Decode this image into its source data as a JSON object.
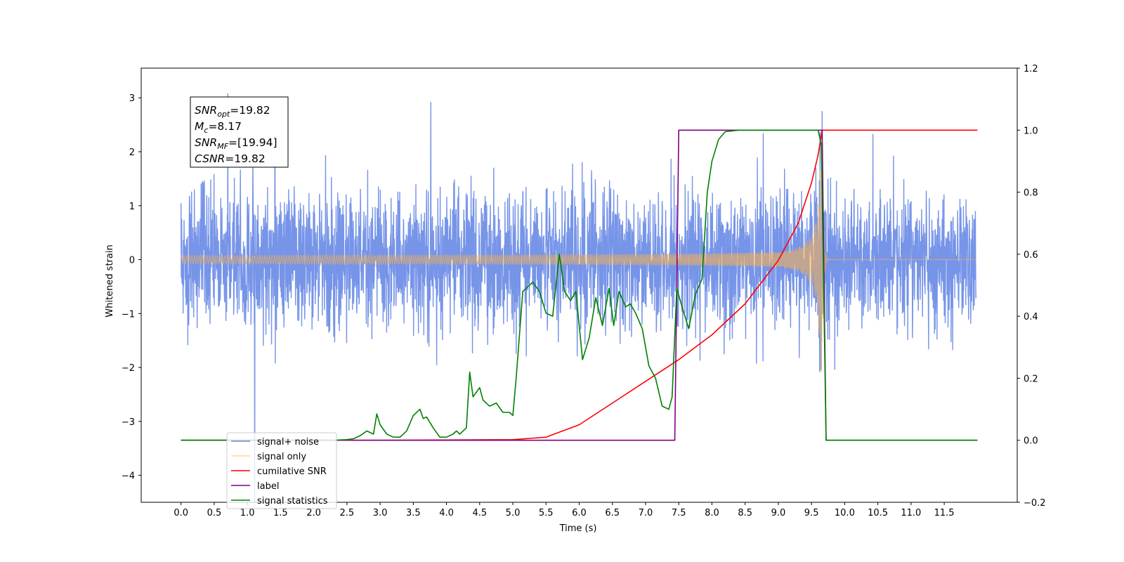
{
  "chart_data": {
    "type": "line",
    "title": "",
    "xlabel": "Time (s)",
    "ylabel": "Whitened strain",
    "xlim": [
      -0.6,
      12.6
    ],
    "ylim_left": [
      -4.5,
      3.55
    ],
    "ylim_right": [
      -0.2,
      1.2
    ],
    "x_ticks": [
      0.0,
      0.5,
      1.0,
      1.5,
      2.0,
      2.5,
      3.0,
      3.5,
      4.0,
      4.5,
      5.0,
      5.5,
      6.0,
      6.5,
      7.0,
      7.5,
      8.0,
      8.5,
      9.0,
      9.5,
      10.0,
      10.5,
      11.0,
      11.5
    ],
    "x_tick_labels": [
      "0.0",
      "0.5",
      "1.0",
      "1.5",
      "2.0",
      "2.5",
      "3.0",
      "3.5",
      "4.0",
      "4.5",
      "5.0",
      "5.5",
      "6.0",
      "6.5",
      "7.0",
      "7.5",
      "8.0",
      "8.5",
      "9.0",
      "9.5",
      "10.0",
      "10.5",
      "11.0",
      "11.5"
    ],
    "y_left_ticks": [
      3,
      2,
      1,
      0,
      -1,
      -2,
      -3,
      -4
    ],
    "y_left_tick_labels": [
      "3",
      "2",
      "1",
      "0",
      "−1",
      "−2",
      "−3",
      "−4"
    ],
    "y_right_ticks": [
      1.2,
      1.0,
      0.8,
      0.6,
      0.4,
      0.2,
      0.0,
      -0.2
    ],
    "y_right_tick_labels": [
      "1.2",
      "1.0",
      "0.8",
      "0.6",
      "0.4",
      "0.2",
      "0.0",
      "−0.2"
    ],
    "grid": false,
    "legend_position": "bottom-left",
    "annotation": {
      "lines": [
        {
          "var": "SNR",
          "sub": "opt",
          "value": "=19.82"
        },
        {
          "var": "M",
          "sub": "c",
          "value": "=8.17"
        },
        {
          "var": "SNR",
          "sub": "MF",
          "value": "=[19.94]"
        },
        {
          "var": "CSNR",
          "sub": "",
          "value": "=19.82"
        }
      ]
    },
    "signal_params": {
      "duration": 12.0,
      "noise_std": 0.62,
      "merger_time": 9.66,
      "peak_amplitude": 2.15
    },
    "series": [
      {
        "name": "signal+ noise",
        "color": "#6a8be6",
        "axis": "left",
        "kind": "noisy_strain"
      },
      {
        "name": "signal only",
        "color": "#ffb347",
        "axis": "left",
        "kind": "chirp"
      },
      {
        "name": "cumilative SNR",
        "color": "#ff0000",
        "axis": "right",
        "x": [
          0,
          3.0,
          5.0,
          5.5,
          6.0,
          6.5,
          7.0,
          7.5,
          8.0,
          8.5,
          9.0,
          9.3,
          9.5,
          9.6,
          9.66,
          9.7,
          12.0
        ],
        "values": [
          0,
          0,
          0.002,
          0.01,
          0.05,
          0.12,
          0.19,
          0.26,
          0.34,
          0.44,
          0.58,
          0.7,
          0.83,
          0.92,
          1.0,
          1.0,
          1.0
        ]
      },
      {
        "name": "label",
        "color": "#800080",
        "axis": "right",
        "x": [
          0,
          7.44,
          7.5,
          9.66,
          9.72,
          12.0
        ],
        "values": [
          0,
          0,
          1,
          1,
          0,
          0
        ]
      },
      {
        "name": "signal statistics",
        "color": "#008000",
        "axis": "right",
        "x": [
          0,
          2.3,
          2.5,
          2.6,
          2.7,
          2.8,
          2.9,
          2.95,
          3.0,
          3.1,
          3.2,
          3.3,
          3.4,
          3.5,
          3.6,
          3.65,
          3.7,
          3.8,
          3.9,
          4.0,
          4.1,
          4.15,
          4.2,
          4.3,
          4.35,
          4.4,
          4.5,
          4.55,
          4.65,
          4.75,
          4.85,
          4.95,
          5.0,
          5.05,
          5.15,
          5.3,
          5.4,
          5.5,
          5.6,
          5.7,
          5.78,
          5.87,
          5.95,
          6.05,
          6.15,
          6.25,
          6.35,
          6.45,
          6.52,
          6.6,
          6.7,
          6.77,
          6.85,
          6.95,
          7.05,
          7.15,
          7.25,
          7.35,
          7.4,
          7.47,
          7.55,
          7.65,
          7.75,
          7.85,
          7.93,
          8.0,
          8.1,
          8.2,
          8.4,
          8.7,
          9.0,
          9.3,
          9.5,
          9.6,
          9.65,
          9.72,
          12.0
        ],
        "values": [
          0,
          0,
          0.002,
          0.005,
          0.015,
          0.03,
          0.02,
          0.085,
          0.05,
          0.02,
          0.01,
          0.01,
          0.03,
          0.08,
          0.1,
          0.07,
          0.075,
          0.04,
          0.01,
          0.01,
          0.02,
          0.03,
          0.02,
          0.04,
          0.22,
          0.14,
          0.17,
          0.13,
          0.11,
          0.12,
          0.09,
          0.09,
          0.08,
          0.2,
          0.48,
          0.51,
          0.48,
          0.41,
          0.4,
          0.6,
          0.48,
          0.45,
          0.48,
          0.26,
          0.33,
          0.46,
          0.37,
          0.49,
          0.37,
          0.48,
          0.43,
          0.44,
          0.41,
          0.36,
          0.24,
          0.2,
          0.11,
          0.1,
          0.14,
          0.49,
          0.43,
          0.36,
          0.47,
          0.52,
          0.8,
          0.9,
          0.97,
          0.995,
          1.0,
          1.0,
          1.0,
          1.0,
          1.0,
          1.0,
          0.95,
          0.0,
          0.0
        ]
      }
    ]
  }
}
